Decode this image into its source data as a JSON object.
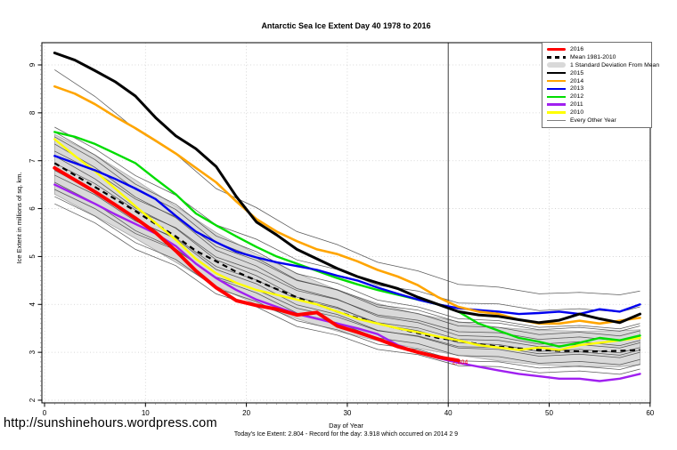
{
  "page": {
    "url": "http://sunshinehours.wordpress.com"
  },
  "chart_data": {
    "type": "line",
    "title": "Antarctic Sea Ice Extent Day 40 1978 to 2016",
    "xlabel": "Day of Year",
    "ylabel": "Ice Extent in millions of sq. km.",
    "footnote": "Today's Ice Extent: 2.804  - Record for the day: 3.918 which occurred on 2014 2 9",
    "today_extent": "2.804",
    "record_for_day": "3.918",
    "record_year": "2014 2 9",
    "xlim": [
      0,
      61
    ],
    "ylim": [
      2,
      9.46
    ],
    "x_ticks": [
      0,
      10,
      20,
      30,
      40,
      50,
      60
    ],
    "y_ticks": [
      2,
      3,
      4,
      5,
      6,
      7,
      8,
      9
    ],
    "grid": "dotted",
    "vline": {
      "x": 40,
      "color": "#3c3c3c"
    },
    "annotation": {
      "text": "2.804",
      "x": 40.4,
      "y": 2.79,
      "color": "#ff0000"
    },
    "legend": {
      "position": "top-right",
      "entries": [
        {
          "label": "2016",
          "color": "#ff0000",
          "type": "line-thick"
        },
        {
          "label": "Mean 1981-2010",
          "color": "#000000",
          "type": "line-dashed"
        },
        {
          "label": "1 Standard Deviation From Mean",
          "color": "#d9d9d9",
          "type": "band"
        },
        {
          "label": "2015",
          "color": "#000000",
          "type": "line"
        },
        {
          "label": "2014",
          "color": "#ffa500",
          "type": "line"
        },
        {
          "label": "2013",
          "color": "#0000ee",
          "type": "line"
        },
        {
          "label": "2012",
          "color": "#00dd00",
          "type": "line"
        },
        {
          "label": "2011",
          "color": "#a020f0",
          "type": "line"
        },
        {
          "label": "2010",
          "color": "#ffff00",
          "type": "line"
        },
        {
          "label": "Every Other Year",
          "color": "#808080",
          "type": "line-thin"
        }
      ]
    },
    "x_main": [
      1,
      3,
      5,
      7,
      9,
      11,
      13,
      15,
      17,
      19,
      21,
      23,
      25,
      27,
      29,
      31,
      33,
      35,
      37,
      39,
      41,
      43,
      45,
      47,
      49,
      51,
      53,
      55,
      57,
      59
    ],
    "band": {
      "label": "1 Standard Deviation From Mean",
      "color": "#d9d9d9",
      "edge_color": "#a8a8a8",
      "x": [
        1,
        5,
        9,
        13,
        17,
        21,
        25,
        29,
        33,
        37,
        41,
        45,
        49,
        53,
        57,
        59
      ],
      "upper": [
        7.55,
        7.12,
        6.6,
        6.05,
        5.5,
        5.05,
        4.65,
        4.3,
        4.02,
        3.8,
        3.64,
        3.52,
        3.46,
        3.44,
        3.45,
        3.47
      ],
      "lower": [
        6.3,
        5.85,
        5.38,
        4.88,
        4.38,
        4.0,
        3.7,
        3.44,
        3.24,
        3.08,
        2.94,
        2.82,
        2.74,
        2.7,
        2.7,
        2.74
      ]
    },
    "mean": {
      "label": "Mean 1981-2010",
      "color": "#000000",
      "style": "dashed",
      "y": [
        6.95,
        6.7,
        6.45,
        6.2,
        5.95,
        5.68,
        5.42,
        5.12,
        4.9,
        4.68,
        4.5,
        4.32,
        4.15,
        4.0,
        3.85,
        3.72,
        3.6,
        3.5,
        3.4,
        3.3,
        3.24,
        3.17,
        3.12,
        3.08,
        3.05,
        3.03,
        3.02,
        3.02,
        3.03,
        3.05
      ]
    },
    "series": [
      {
        "name": "2010",
        "color": "#ffff00",
        "width": 2.4,
        "y": [
          7.45,
          7.1,
          6.78,
          6.42,
          6.05,
          5.7,
          5.35,
          4.95,
          4.65,
          4.45,
          4.3,
          4.2,
          4.1,
          4.0,
          3.85,
          3.7,
          3.6,
          3.5,
          3.42,
          3.33,
          3.25,
          3.15,
          3.1,
          3.05,
          3.1,
          3.05,
          3.15,
          3.2,
          3.25,
          3.3
        ]
      },
      {
        "name": "2011",
        "color": "#a020f0",
        "width": 2.4,
        "y": [
          6.5,
          6.3,
          6.1,
          5.88,
          5.68,
          5.48,
          5.22,
          4.85,
          4.55,
          4.3,
          4.1,
          3.95,
          3.8,
          3.7,
          3.6,
          3.5,
          3.38,
          3.15,
          3.0,
          2.88,
          2.78,
          2.7,
          2.62,
          2.55,
          2.5,
          2.45,
          2.45,
          2.4,
          2.45,
          2.55
        ]
      },
      {
        "name": "2012",
        "color": "#00dd00",
        "width": 2.4,
        "y": [
          7.6,
          7.5,
          7.35,
          7.15,
          6.95,
          6.62,
          6.3,
          5.9,
          5.65,
          5.42,
          5.2,
          5.0,
          4.85,
          4.7,
          4.55,
          4.42,
          4.3,
          4.2,
          4.1,
          4.0,
          3.85,
          3.6,
          3.45,
          3.3,
          3.22,
          3.12,
          3.2,
          3.3,
          3.25,
          3.35
        ]
      },
      {
        "name": "2013",
        "color": "#0000ee",
        "width": 2.4,
        "y": [
          7.1,
          6.95,
          6.8,
          6.62,
          6.42,
          6.2,
          5.85,
          5.52,
          5.3,
          5.1,
          4.98,
          4.88,
          4.8,
          4.72,
          4.6,
          4.5,
          4.35,
          4.22,
          4.1,
          4.0,
          3.92,
          3.88,
          3.85,
          3.8,
          3.82,
          3.85,
          3.8,
          3.9,
          3.85,
          4.0
        ]
      },
      {
        "name": "2014",
        "color": "#ffa500",
        "width": 2.6,
        "y": [
          8.55,
          8.4,
          8.18,
          7.92,
          7.68,
          7.42,
          7.15,
          6.85,
          6.55,
          6.15,
          5.78,
          5.52,
          5.32,
          5.15,
          5.05,
          4.9,
          4.72,
          4.58,
          4.4,
          4.15,
          3.95,
          3.85,
          3.8,
          3.68,
          3.6,
          3.6,
          3.66,
          3.6,
          3.66,
          3.72
        ]
      },
      {
        "name": "2015",
        "color": "#000000",
        "width": 3,
        "y": [
          9.25,
          9.1,
          8.88,
          8.65,
          8.35,
          7.9,
          7.52,
          7.25,
          6.88,
          6.25,
          5.72,
          5.45,
          5.15,
          4.95,
          4.75,
          4.58,
          4.45,
          4.33,
          4.15,
          4.0,
          3.85,
          3.78,
          3.75,
          3.68,
          3.62,
          3.67,
          3.8,
          3.7,
          3.62,
          3.8
        ]
      },
      {
        "name": "2016",
        "color": "#ff0000",
        "width": 4,
        "x": [
          1,
          3,
          5,
          7,
          9,
          11,
          13,
          15,
          17,
          19,
          21,
          23,
          25,
          27,
          29,
          31,
          33,
          35,
          37,
          39,
          41
        ],
        "y": [
          6.85,
          6.6,
          6.35,
          6.08,
          5.8,
          5.5,
          5.12,
          4.7,
          4.35,
          4.08,
          3.98,
          3.9,
          3.78,
          3.83,
          3.55,
          3.42,
          3.28,
          3.12,
          3.0,
          2.9,
          2.83
        ]
      }
    ],
    "other_years": {
      "label": "Every Other Year",
      "color": "#454545",
      "x": [
        1,
        5,
        9,
        13,
        17,
        21,
        25,
        29,
        33,
        37,
        41,
        45,
        49,
        53,
        57,
        59
      ],
      "lines": [
        [
          8.9,
          8.34,
          7.66,
          7.14,
          6.42,
          6.02,
          5.52,
          5.25,
          4.88,
          4.7,
          4.42,
          4.36,
          4.22,
          4.25,
          4.2,
          4.28
        ],
        [
          7.7,
          7.25,
          6.69,
          6.28,
          5.66,
          5.36,
          4.93,
          4.73,
          4.4,
          4.28,
          4.03,
          4.01,
          3.87,
          3.91,
          3.84,
          3.95
        ],
        [
          7.6,
          7.12,
          6.51,
          6.09,
          5.43,
          5.1,
          4.64,
          4.44,
          4.09,
          3.95,
          3.7,
          3.66,
          3.52,
          3.56,
          3.49,
          3.6
        ],
        [
          7.5,
          7.02,
          6.4,
          5.98,
          5.3,
          4.97,
          4.51,
          4.3,
          3.95,
          3.81,
          3.55,
          3.52,
          3.37,
          3.42,
          3.34,
          3.45
        ],
        [
          7.35,
          6.86,
          6.24,
          5.81,
          5.13,
          4.8,
          4.33,
          4.11,
          3.75,
          3.62,
          3.35,
          3.32,
          3.17,
          3.22,
          3.14,
          3.25
        ],
        [
          7.2,
          6.77,
          6.2,
          5.83,
          5.21,
          4.92,
          4.5,
          4.31,
          3.99,
          3.88,
          3.63,
          3.61,
          3.47,
          3.52,
          3.44,
          3.55
        ],
        [
          7.1,
          6.62,
          6.01,
          5.59,
          4.93,
          4.6,
          4.15,
          3.94,
          3.59,
          3.45,
          3.2,
          3.16,
          3.02,
          3.06,
          2.99,
          3.1
        ],
        [
          6.95,
          6.52,
          5.97,
          5.6,
          4.99,
          4.7,
          4.29,
          4.1,
          3.78,
          3.67,
          3.43,
          3.41,
          3.27,
          3.32,
          3.24,
          3.35
        ],
        [
          6.8,
          6.35,
          5.76,
          5.37,
          4.73,
          4.43,
          3.99,
          3.79,
          3.46,
          3.33,
          3.09,
          3.06,
          2.92,
          2.96,
          2.89,
          3.0
        ],
        [
          6.7,
          6.29,
          5.74,
          5.39,
          4.79,
          4.51,
          4.11,
          3.92,
          3.62,
          3.51,
          3.27,
          3.25,
          3.12,
          3.16,
          3.09,
          3.2
        ],
        [
          6.55,
          6.11,
          5.54,
          5.16,
          4.54,
          4.24,
          3.82,
          3.62,
          3.3,
          3.18,
          2.93,
          2.91,
          2.77,
          2.81,
          2.74,
          2.85
        ],
        [
          6.4,
          6.0,
          5.48,
          5.14,
          4.57,
          4.31,
          3.92,
          3.74,
          3.45,
          3.34,
          3.12,
          3.1,
          2.97,
          3.01,
          2.94,
          3.05
        ],
        [
          6.25,
          5.84,
          5.29,
          4.94,
          4.34,
          4.06,
          3.66,
          3.47,
          3.17,
          3.06,
          2.82,
          2.8,
          2.67,
          2.71,
          2.64,
          2.75
        ],
        [
          6.1,
          5.7,
          5.15,
          4.81,
          4.22,
          3.95,
          3.54,
          3.36,
          3.06,
          2.95,
          2.72,
          2.7,
          2.57,
          2.61,
          2.54,
          2.65
        ]
      ]
    }
  }
}
